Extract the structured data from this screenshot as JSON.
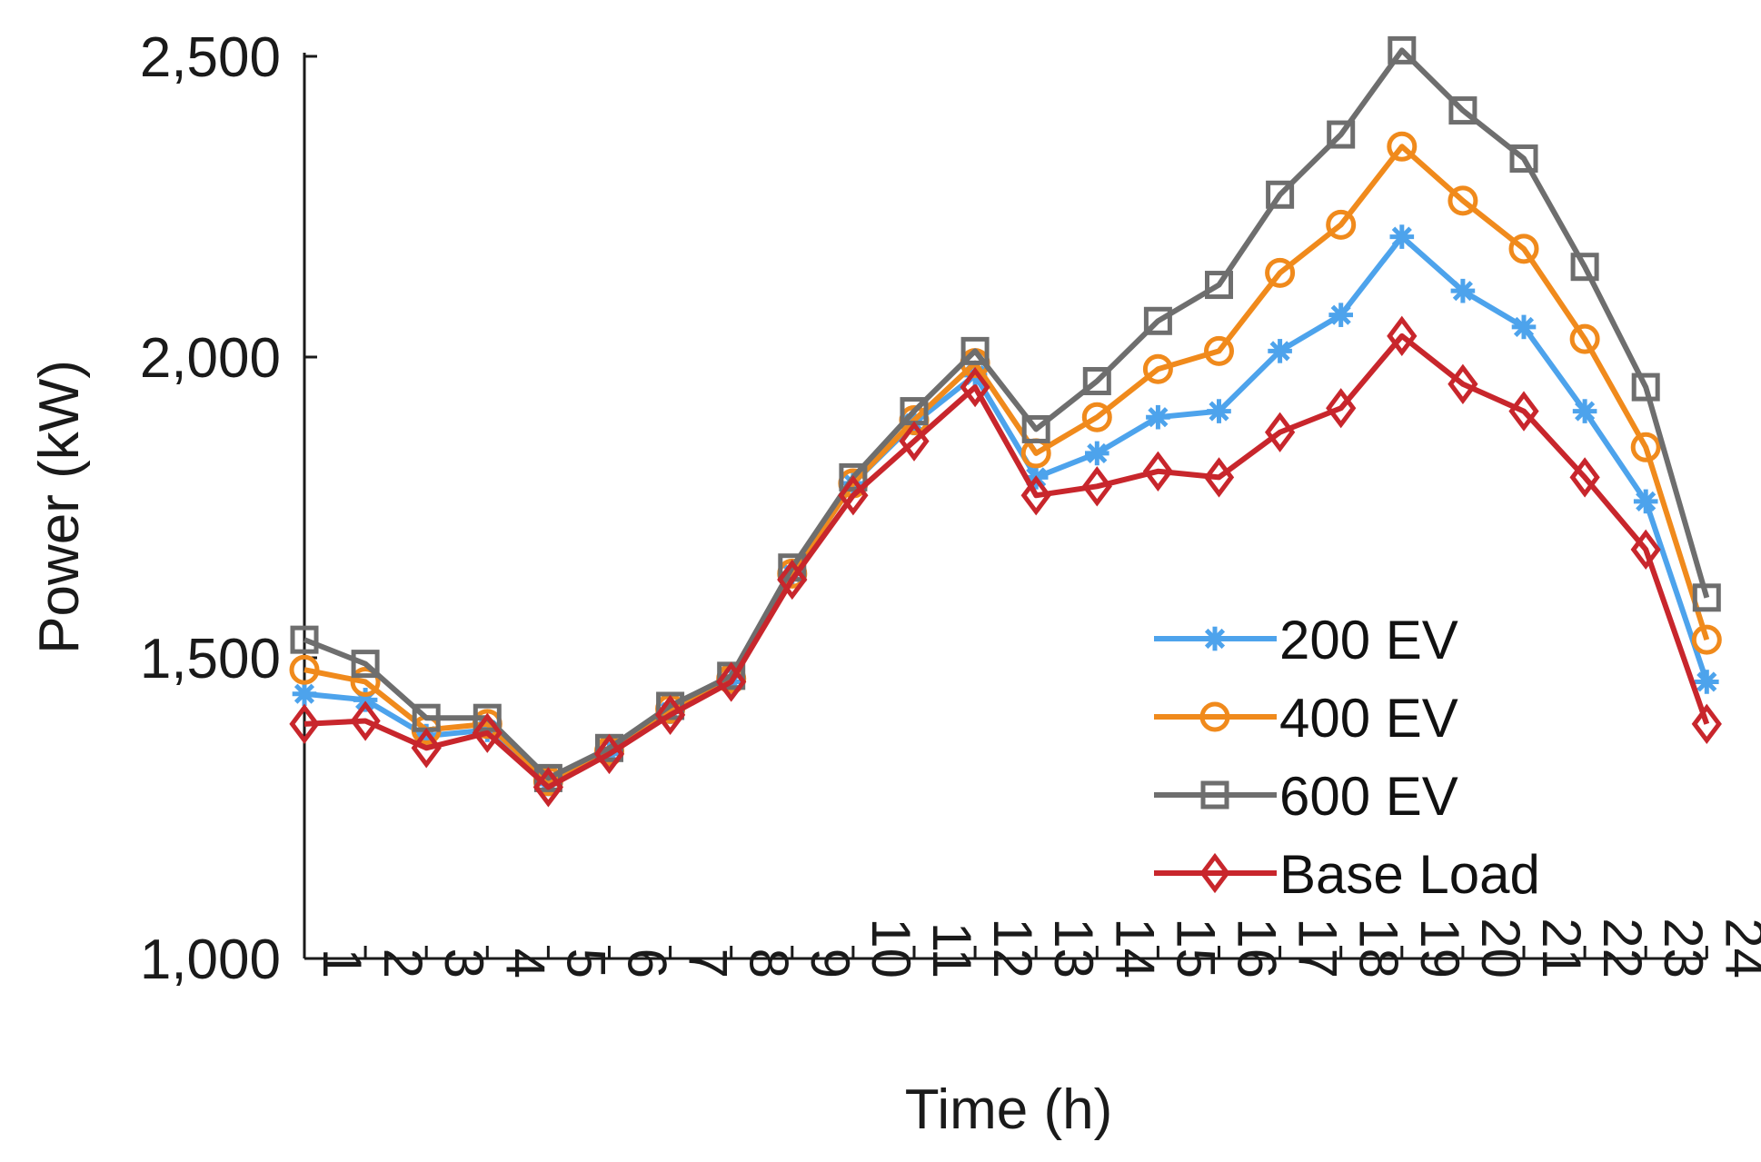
{
  "chart_data": {
    "type": "line",
    "title": "",
    "xlabel": "Time (h)",
    "ylabel": "Power (kW)",
    "x": [
      1,
      2,
      3,
      4,
      5,
      6,
      7,
      8,
      9,
      10,
      11,
      12,
      13,
      14,
      15,
      16,
      17,
      18,
      19,
      20,
      21,
      22,
      23,
      24
    ],
    "x_tick_labels": [
      "1",
      "2",
      "3",
      "4",
      "5",
      "6",
      "7",
      "8",
      "9",
      "10",
      "11",
      "12",
      "13",
      "14",
      "15",
      "16",
      "17",
      "18",
      "19",
      "20",
      "21",
      "22",
      "23",
      "24"
    ],
    "ylim": [
      1000,
      2500
    ],
    "y_ticks": [
      1000,
      1500,
      2000,
      2500
    ],
    "y_tick_labels": [
      "1,000",
      "1,500",
      "2,000",
      "2,500"
    ],
    "grid": false,
    "legend_position": "bottom-right",
    "series": [
      {
        "name": "200 EV",
        "color": "#4da3ec",
        "marker": "asterisk",
        "values": [
          1440,
          1430,
          1370,
          1380,
          1290,
          1340,
          1410,
          1460,
          1640,
          1790,
          1890,
          1970,
          1800,
          1840,
          1900,
          1910,
          2010,
          2070,
          2200,
          2110,
          2050,
          1910,
          1760,
          1460
        ]
      },
      {
        "name": "400 EV",
        "color": "#f08a1c",
        "marker": "circle",
        "values": [
          1480,
          1460,
          1380,
          1390,
          1295,
          1345,
          1415,
          1465,
          1640,
          1790,
          1895,
          1990,
          1840,
          1900,
          1980,
          2010,
          2140,
          2220,
          2350,
          2260,
          2180,
          2030,
          1850,
          1530
        ]
      },
      {
        "name": "600 EV",
        "color": "#6e6e6e",
        "marker": "square",
        "values": [
          1530,
          1490,
          1400,
          1400,
          1300,
          1350,
          1420,
          1470,
          1650,
          1800,
          1910,
          2010,
          1880,
          1960,
          2060,
          2120,
          2270,
          2370,
          2510,
          2410,
          2330,
          2150,
          1950,
          1600
        ]
      },
      {
        "name": "Base Load",
        "color": "#c8262c",
        "marker": "diamond",
        "values": [
          1390,
          1395,
          1350,
          1375,
          1285,
          1340,
          1405,
          1460,
          1630,
          1770,
          1860,
          1950,
          1770,
          1785,
          1810,
          1800,
          1875,
          1915,
          2035,
          1955,
          1910,
          1800,
          1680,
          1390
        ]
      }
    ]
  }
}
